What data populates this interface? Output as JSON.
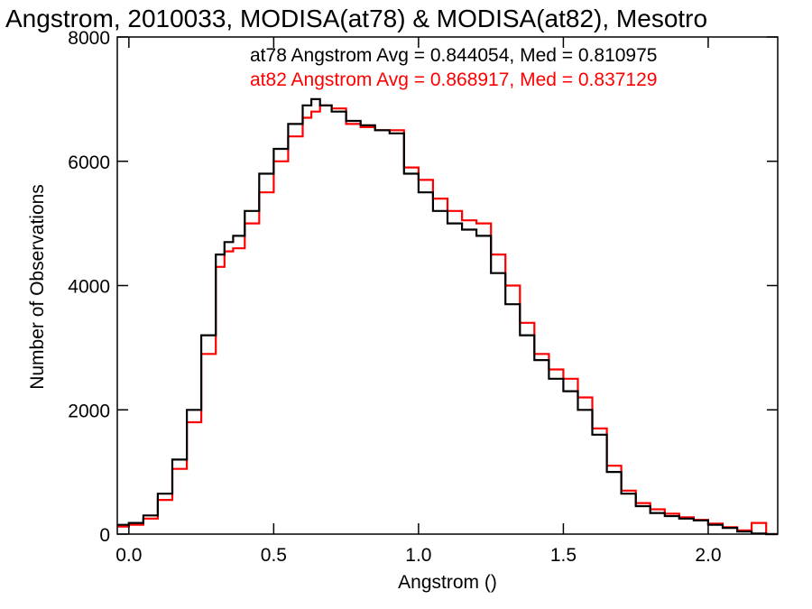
{
  "chart_data": {
    "type": "line",
    "step": true,
    "title": "Angstrom, 2010033, MODISA(at78) & MODISA(at82), Mesotro",
    "xlabel": "Angstrom ()",
    "ylabel": "Number of Observations",
    "xlim": [
      -0.04,
      2.24
    ],
    "ylim": [
      0,
      8000
    ],
    "x_ticks": [
      0.0,
      0.5,
      1.0,
      1.5,
      2.0
    ],
    "x_tick_labels": [
      "0.0",
      "0.5",
      "1.0",
      "1.5",
      "2.0"
    ],
    "y_ticks": [
      0,
      2000,
      4000,
      6000,
      8000
    ],
    "y_tick_labels": [
      "0",
      "2000",
      "4000",
      "6000",
      "8000"
    ],
    "grid": false,
    "legend_position": "top-right",
    "series": [
      {
        "name": "at78",
        "color": "#000000",
        "legend_text": "at78 Angstrom Avg = 0.844054, Med = 0.810975",
        "x": [
          -0.04,
          0.0,
          0.05,
          0.1,
          0.15,
          0.2,
          0.25,
          0.3,
          0.33,
          0.36,
          0.4,
          0.45,
          0.5,
          0.55,
          0.6,
          0.63,
          0.66,
          0.7,
          0.75,
          0.8,
          0.85,
          0.9,
          0.95,
          1.0,
          1.05,
          1.1,
          1.15,
          1.2,
          1.25,
          1.3,
          1.35,
          1.4,
          1.45,
          1.5,
          1.55,
          1.6,
          1.65,
          1.7,
          1.75,
          1.8,
          1.85,
          1.9,
          1.95,
          2.0,
          2.05,
          2.1,
          2.15,
          2.2
        ],
        "values": [
          150,
          180,
          300,
          650,
          1200,
          2000,
          3200,
          4500,
          4700,
          4800,
          5200,
          5800,
          6200,
          6600,
          6900,
          7000,
          6900,
          6800,
          6650,
          6580,
          6500,
          6450,
          5800,
          5500,
          5200,
          5000,
          4900,
          4800,
          4200,
          3700,
          3200,
          2800,
          2500,
          2300,
          2000,
          1600,
          1000,
          650,
          450,
          340,
          290,
          250,
          220,
          150,
          100,
          40,
          10,
          0
        ]
      },
      {
        "name": "at82",
        "color": "#ff0000",
        "legend_text": "at82 Angstrom Avg = 0.868917, Med = 0.837129",
        "x": [
          -0.04,
          0.0,
          0.05,
          0.1,
          0.15,
          0.2,
          0.25,
          0.3,
          0.33,
          0.36,
          0.4,
          0.45,
          0.5,
          0.55,
          0.6,
          0.63,
          0.66,
          0.7,
          0.75,
          0.8,
          0.85,
          0.9,
          0.95,
          1.0,
          1.05,
          1.1,
          1.15,
          1.2,
          1.25,
          1.3,
          1.35,
          1.4,
          1.45,
          1.5,
          1.55,
          1.6,
          1.65,
          1.7,
          1.75,
          1.8,
          1.85,
          1.9,
          1.95,
          2.0,
          2.05,
          2.1,
          2.15,
          2.2
        ],
        "values": [
          120,
          150,
          250,
          550,
          1050,
          1800,
          2900,
          4300,
          4550,
          4600,
          5000,
          5500,
          6000,
          6400,
          6700,
          6800,
          6900,
          6850,
          6600,
          6550,
          6500,
          6500,
          5900,
          5700,
          5400,
          5200,
          5050,
          5000,
          4500,
          4000,
          3400,
          2900,
          2650,
          2500,
          2200,
          1700,
          1100,
          700,
          500,
          400,
          330,
          270,
          230,
          170,
          110,
          60,
          180,
          0
        ]
      }
    ]
  }
}
